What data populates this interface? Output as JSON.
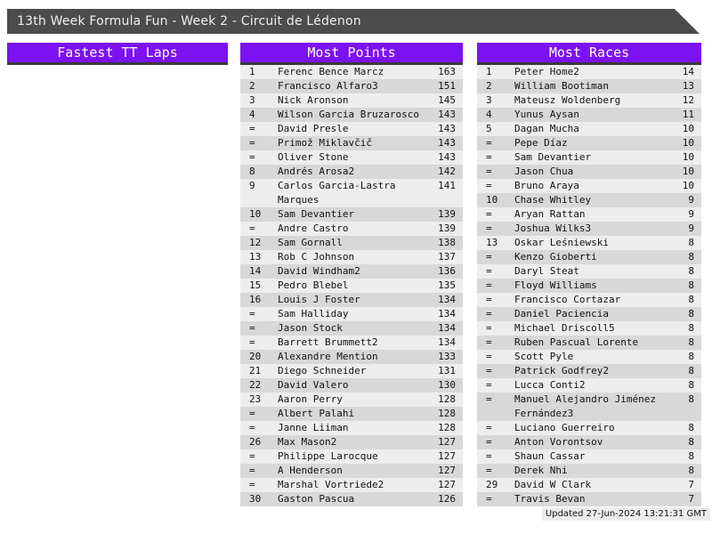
{
  "banner": {
    "title": "13th Week Formula Fun - Week 2 - Circuit de Lédenon"
  },
  "columns": [
    {
      "id": "fastest-tt-laps",
      "header": "Fastest TT Laps",
      "entries": []
    },
    {
      "id": "most-points",
      "header": "Most Points",
      "entries": [
        {
          "rank": "1",
          "name": "Ferenc Bence Marcz",
          "value": "163"
        },
        {
          "rank": "2",
          "name": "Francisco Alfaro3",
          "value": "151"
        },
        {
          "rank": "3",
          "name": "Nick Aronson",
          "value": "145"
        },
        {
          "rank": "4",
          "name": "Wilson Garcia Bruzarosco",
          "value": "143"
        },
        {
          "rank": "=",
          "name": "David Presle",
          "value": "143"
        },
        {
          "rank": "=",
          "name": "Primož Miklavčič",
          "value": "143"
        },
        {
          "rank": "=",
          "name": "Oliver Stone",
          "value": "143"
        },
        {
          "rank": "8",
          "name": "Andrés Arosa2",
          "value": "142"
        },
        {
          "rank": "9",
          "name": "Carlos Garcia-Lastra Marques",
          "value": "141"
        },
        {
          "rank": "10",
          "name": "Sam Devantier",
          "value": "139"
        },
        {
          "rank": "=",
          "name": "Andre Castro",
          "value": "139"
        },
        {
          "rank": "12",
          "name": "Sam Gornall",
          "value": "138"
        },
        {
          "rank": "13",
          "name": "Rob C Johnson",
          "value": "137"
        },
        {
          "rank": "14",
          "name": "David Windham2",
          "value": "136"
        },
        {
          "rank": "15",
          "name": "Pedro Blebel",
          "value": "135"
        },
        {
          "rank": "16",
          "name": "Louis J Foster",
          "value": "134"
        },
        {
          "rank": "=",
          "name": "Sam Halliday",
          "value": "134"
        },
        {
          "rank": "=",
          "name": "Jason Stock",
          "value": "134"
        },
        {
          "rank": "=",
          "name": "Barrett Brummett2",
          "value": "134"
        },
        {
          "rank": "20",
          "name": "Alexandre Mention",
          "value": "133"
        },
        {
          "rank": "21",
          "name": "Diego Schneider",
          "value": "131"
        },
        {
          "rank": "22",
          "name": "David Valero",
          "value": "130"
        },
        {
          "rank": "23",
          "name": "Aaron Perry",
          "value": "128"
        },
        {
          "rank": "=",
          "name": "Albert Palahi",
          "value": "128"
        },
        {
          "rank": "=",
          "name": "Janne Liiman",
          "value": "128"
        },
        {
          "rank": "26",
          "name": "Max Mason2",
          "value": "127"
        },
        {
          "rank": "=",
          "name": "Philippe Larocque",
          "value": "127"
        },
        {
          "rank": "=",
          "name": "A Henderson",
          "value": "127"
        },
        {
          "rank": "=",
          "name": "Marshal Vortriede2",
          "value": "127"
        },
        {
          "rank": "30",
          "name": "Gaston Pascua",
          "value": "126"
        }
      ]
    },
    {
      "id": "most-races",
      "header": "Most Races",
      "entries": [
        {
          "rank": "1",
          "name": "Peter Home2",
          "value": "14"
        },
        {
          "rank": "2",
          "name": "William Bootiman",
          "value": "13"
        },
        {
          "rank": "3",
          "name": "Mateusz Woldenberg",
          "value": "12"
        },
        {
          "rank": "4",
          "name": "Yunus Aysan",
          "value": "11"
        },
        {
          "rank": "5",
          "name": "Dagan Mucha",
          "value": "10"
        },
        {
          "rank": "=",
          "name": "Pepe Díaz",
          "value": "10"
        },
        {
          "rank": "=",
          "name": "Sam Devantier",
          "value": "10"
        },
        {
          "rank": "=",
          "name": "Jason Chua",
          "value": "10"
        },
        {
          "rank": "=",
          "name": "Bruno Araya",
          "value": "10"
        },
        {
          "rank": "10",
          "name": "Chase Whitley",
          "value": "9"
        },
        {
          "rank": "=",
          "name": "Aryan Rattan",
          "value": "9"
        },
        {
          "rank": "=",
          "name": "Joshua Wilks3",
          "value": "9"
        },
        {
          "rank": "13",
          "name": "Oskar Leśniewski",
          "value": "8"
        },
        {
          "rank": "=",
          "name": "Kenzo Gioberti",
          "value": "8"
        },
        {
          "rank": "=",
          "name": "Daryl Steat",
          "value": "8"
        },
        {
          "rank": "=",
          "name": "Floyd Williams",
          "value": "8"
        },
        {
          "rank": "=",
          "name": "Francisco Cortazar",
          "value": "8"
        },
        {
          "rank": "=",
          "name": "Daniel Paciencia",
          "value": "8"
        },
        {
          "rank": "=",
          "name": "Michael Driscoll5",
          "value": "8"
        },
        {
          "rank": "=",
          "name": "Ruben Pascual Lorente",
          "value": "8"
        },
        {
          "rank": "=",
          "name": "Scott Pyle",
          "value": "8"
        },
        {
          "rank": "=",
          "name": "Patrick Godfrey2",
          "value": "8"
        },
        {
          "rank": "=",
          "name": "Lucca Conti2",
          "value": "8"
        },
        {
          "rank": "=",
          "name": "Manuel Alejandro Jiménez Fernández3",
          "value": "8"
        },
        {
          "rank": "=",
          "name": "Luciano Guerreiro",
          "value": "8"
        },
        {
          "rank": "=",
          "name": "Anton Vorontsov",
          "value": "8"
        },
        {
          "rank": "=",
          "name": "Shaun Cassar",
          "value": "8"
        },
        {
          "rank": "=",
          "name": "Derek Nhi",
          "value": "8"
        },
        {
          "rank": "29",
          "name": "David W Clark",
          "value": "7"
        },
        {
          "rank": "=",
          "name": "Travis Bevan",
          "value": "7"
        }
      ]
    }
  ],
  "footer": {
    "updated": "Updated 27-Jun-2024 13:21:31 GMT"
  },
  "colors": {
    "accent_purple": "#7c12f2",
    "banner_gray": "#4c4c4c",
    "row_light": "#ededed",
    "row_dark": "#d8d8d8",
    "header_border": "#3a3a3a"
  }
}
